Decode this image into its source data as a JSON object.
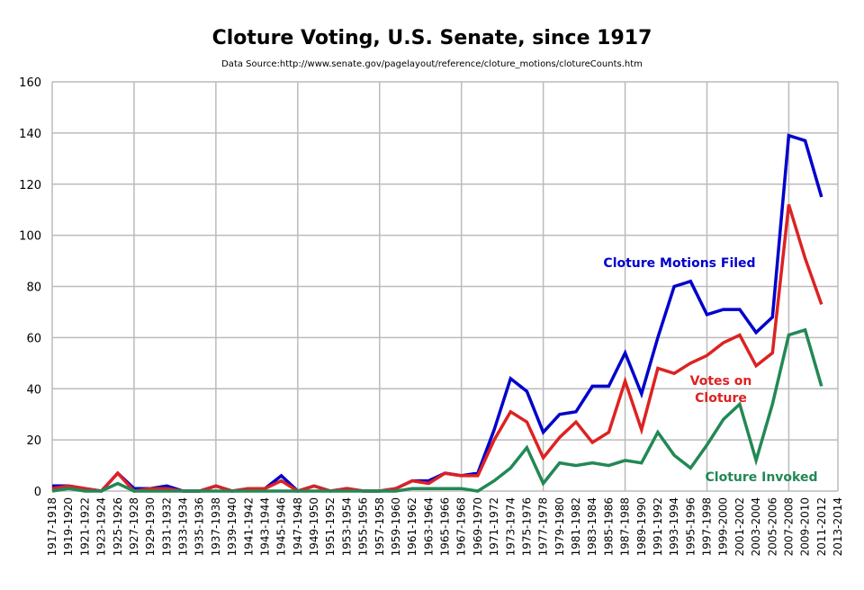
{
  "chart_data": {
    "type": "line",
    "title": "Cloture Voting, U.S. Senate, since 1917",
    "subtitle": "Data Source:http://www.senate.gov/pagelayout/reference/cloture_motions/clotureCounts.htm",
    "xlabel": "",
    "ylabel": "",
    "ylim": [
      0,
      160
    ],
    "yticks": [
      0,
      20,
      40,
      60,
      80,
      100,
      120,
      140,
      160
    ],
    "grid": true,
    "categories": [
      "1917-1918",
      "1919-1920",
      "1921-1922",
      "1923-1924",
      "1925-1926",
      "1927-1928",
      "1929-1930",
      "1931-1932",
      "1933-1934",
      "1935-1936",
      "1937-1938",
      "1939-1940",
      "1941-1942",
      "1943-1944",
      "1945-1946",
      "1947-1948",
      "1949-1950",
      "1951-1952",
      "1953-1954",
      "1955-1956",
      "1957-1958",
      "1959-1960",
      "1961-1962",
      "1963-1964",
      "1965-1966",
      "1967-1968",
      "1969-1970",
      "1971-1972",
      "1973-1974",
      "1975-1976",
      "1977-1978",
      "1979-1980",
      "1981-1982",
      "1983-1984",
      "1985-1986",
      "1987-1988",
      "1989-1990",
      "1991-1992",
      "1993-1994",
      "1995-1996",
      "1997-1998",
      "1999-2000",
      "2001-2002",
      "2003-2004",
      "2005-2006",
      "2007-2008",
      "2009-2010",
      "2011-2012",
      "2013-2014"
    ],
    "series": [
      {
        "name": "Cloture Motions Filed",
        "color": "#0000cc",
        "values": [
          2,
          2,
          1,
          0,
          7,
          1,
          1,
          2,
          0,
          0,
          2,
          0,
          1,
          1,
          6,
          0,
          2,
          0,
          1,
          0,
          0,
          1,
          4,
          4,
          7,
          6,
          7,
          24,
          44,
          39,
          23,
          30,
          31,
          41,
          41,
          54,
          38,
          60,
          80,
          82,
          69,
          71,
          71,
          62,
          68,
          139,
          137,
          115,
          null
        ]
      },
      {
        "name": "Votes on Cloture",
        "color": "#dd2222",
        "values": [
          1,
          2,
          1,
          0,
          7,
          0,
          1,
          1,
          0,
          0,
          2,
          0,
          1,
          1,
          4,
          0,
          2,
          0,
          1,
          0,
          0,
          1,
          4,
          3,
          7,
          6,
          6,
          20,
          31,
          27,
          13,
          21,
          27,
          19,
          23,
          43,
          24,
          48,
          46,
          50,
          53,
          58,
          61,
          49,
          54,
          112,
          91,
          73,
          null
        ]
      },
      {
        "name": "Cloture Invoked",
        "color": "#228855",
        "values": [
          0,
          1,
          0,
          0,
          3,
          0,
          0,
          0,
          0,
          0,
          0,
          0,
          0,
          0,
          0,
          0,
          0,
          0,
          0,
          0,
          0,
          0,
          1,
          1,
          1,
          1,
          0,
          4,
          9,
          17,
          3,
          11,
          10,
          11,
          10,
          12,
          11,
          23,
          14,
          9,
          18,
          28,
          34,
          12,
          34,
          61,
          63,
          41,
          null
        ]
      }
    ],
    "annotations": {
      "filed": "Cloture Motions Filed",
      "votes_line1": "Votes on",
      "votes_line2": "Cloture",
      "invoked": "Cloture Invoked"
    }
  }
}
